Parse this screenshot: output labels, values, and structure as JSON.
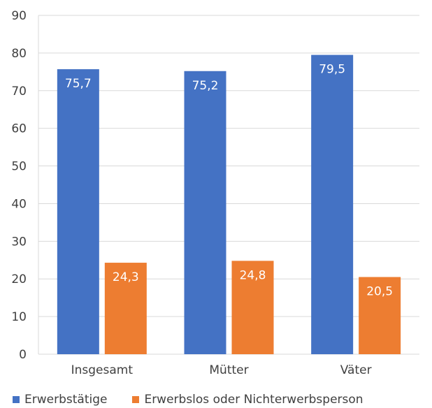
{
  "chart_data": {
    "type": "bar",
    "categories": [
      "Insgesamt",
      "Mütter",
      "Väter"
    ],
    "series": [
      {
        "name": "Erwerbstätige",
        "values": [
          75.7,
          75.2,
          79.5
        ],
        "labels": [
          "75,7",
          "75,2",
          "79,5"
        ],
        "color": "#4472C4"
      },
      {
        "name": "Erwerbslos oder Nichterwerbsperson",
        "values": [
          24.3,
          24.8,
          20.5
        ],
        "labels": [
          "24,3",
          "24,8",
          "20,5"
        ],
        "color": "#ED7D31"
      }
    ],
    "ylim": [
      0,
      90
    ],
    "yticks": [
      0,
      10,
      20,
      30,
      40,
      50,
      60,
      70,
      80,
      90
    ],
    "grid": true,
    "legend_position": "bottom",
    "title": "",
    "xlabel": "",
    "ylabel": ""
  }
}
